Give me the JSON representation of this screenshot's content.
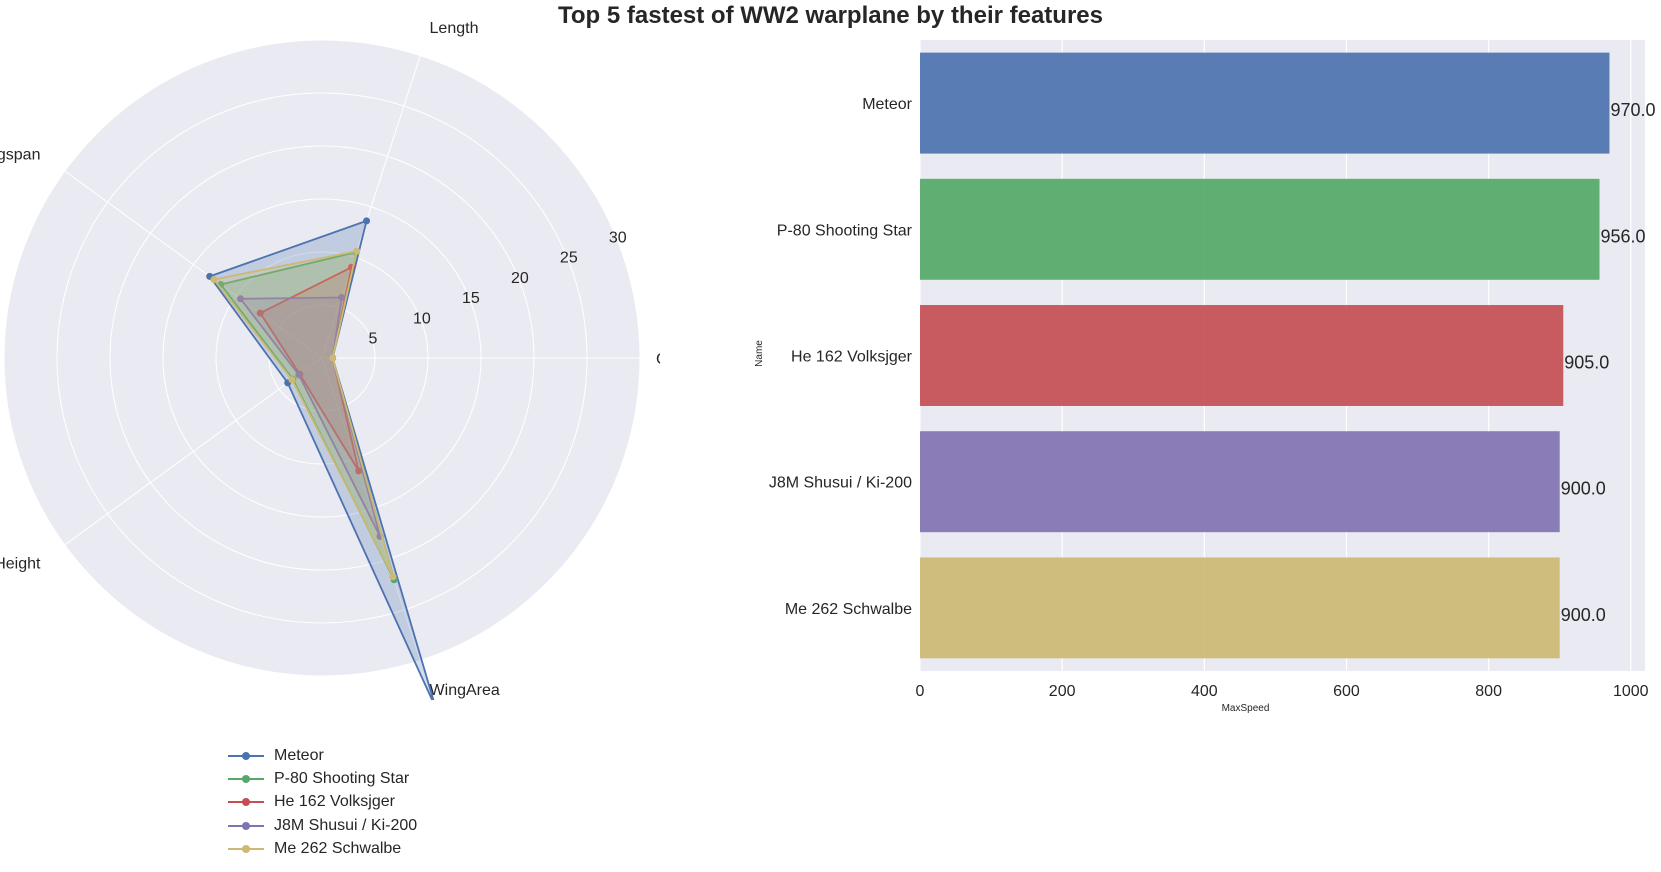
{
  "title": "Top 5 fastest of WW2 warplane by their features",
  "colors": {
    "background": "#eaeaf2",
    "grid": "#ffffff",
    "text": "#262626"
  },
  "chart_data": [
    {
      "type": "radar",
      "axes": [
        "Crew",
        "Length",
        "Wingspan",
        "Height",
        "WingArea"
      ],
      "radial_ticks": [
        5,
        10,
        15,
        20,
        25,
        30
      ],
      "rmax": 30,
      "legend_position": "bottom",
      "series": [
        {
          "name": "Meteor",
          "color": "#4c72b0",
          "values": [
            1,
            13.6,
            13.1,
            4,
            34.7
          ]
        },
        {
          "name": "P-80 Shooting Star",
          "color": "#55a868",
          "values": [
            1,
            10.5,
            11.8,
            3.4,
            22
          ]
        },
        {
          "name": "He 162 Volksjger",
          "color": "#c44e52",
          "values": [
            1,
            9,
            7.2,
            2.6,
            11.2
          ]
        },
        {
          "name": "J8M Shusui / Ki-200",
          "color": "#8172b2",
          "values": [
            1,
            6,
            9.5,
            2.7,
            17.7
          ]
        },
        {
          "name": "Me 262 Schwalbe",
          "color": "#ccb974",
          "values": [
            1,
            10.6,
            12.6,
            3.5,
            21.7
          ]
        }
      ]
    },
    {
      "type": "bar",
      "orientation": "horizontal",
      "categories": [
        "Meteor",
        "P-80 Shooting Star",
        "He 162 Volksjger",
        "J8M Shusui / Ki-200",
        "Me 262 Schwalbe"
      ],
      "values": [
        970.0,
        956.0,
        905.0,
        900.0,
        900.0
      ],
      "colors": [
        "#4c72b0",
        "#55a868",
        "#c44e52",
        "#8172b2",
        "#ccb974"
      ],
      "xlabel": "MaxSpeed",
      "ylabel": "Name",
      "xlim": [
        0,
        1020
      ],
      "xticks": [
        0,
        200,
        400,
        600,
        800,
        1000
      ],
      "grid": true
    }
  ]
}
